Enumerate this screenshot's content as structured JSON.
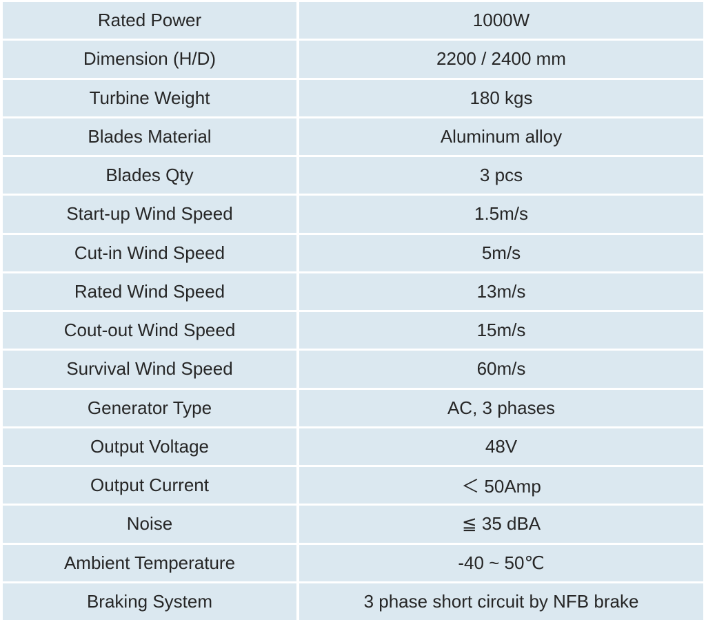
{
  "table": {
    "rows": [
      [
        "Rated Power",
        "1000W"
      ],
      [
        "Dimension (H/D)",
        "2200 / 2400 mm"
      ],
      [
        "Turbine Weight",
        "180 kgs"
      ],
      [
        "Blades Material",
        "Aluminum alloy"
      ],
      [
        "Blades Qty",
        "3 pcs"
      ],
      [
        "Start-up Wind Speed",
        "1.5m/s"
      ],
      [
        "Cut-in Wind Speed",
        "5m/s"
      ],
      [
        "Rated Wind Speed",
        "13m/s"
      ],
      [
        "Cout-out Wind Speed",
        "15m/s"
      ],
      [
        "Survival Wind Speed",
        "60m/s"
      ],
      [
        "Generator Type",
        "AC, 3 phases"
      ],
      [
        "Output Voltage",
        "48V"
      ],
      [
        "Output Current",
        "＜ 50Amp"
      ],
      [
        "Noise",
        "≦ 35 dBA"
      ],
      [
        "Ambient Temperature",
        "-40 ~ 50℃"
      ],
      [
        "Braking System",
        "3 phase short circuit by NFB brake"
      ]
    ]
  }
}
